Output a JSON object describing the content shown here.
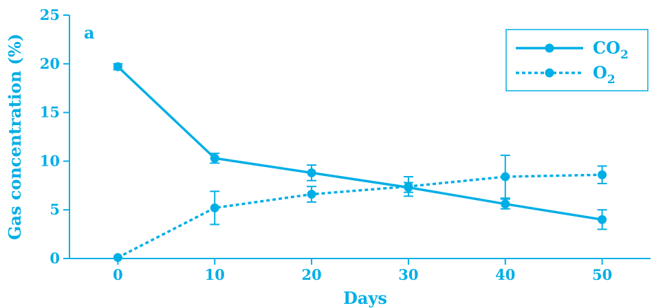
{
  "chart_data": {
    "type": "line",
    "panel_label": "a",
    "xlabel": "Days",
    "ylabel": "Gas concentration (%)",
    "x": [
      0,
      10,
      20,
      30,
      40,
      50
    ],
    "xlim": [
      -5,
      55
    ],
    "ylim": [
      0,
      25
    ],
    "xticks": [
      0,
      10,
      20,
      30,
      40,
      50
    ],
    "yticks": [
      0,
      5,
      10,
      15,
      20,
      25
    ],
    "grid": false,
    "legend_position": "top-right",
    "color": "#00aee6",
    "series": [
      {
        "name": "CO2",
        "label_base": "CO",
        "label_sub": "2",
        "style": "solid",
        "values": [
          19.7,
          10.3,
          8.8,
          7.3,
          5.6,
          4.0
        ],
        "errors": [
          0.3,
          0.5,
          0.8,
          0.5,
          0.5,
          1.0
        ]
      },
      {
        "name": "O2",
        "label_base": "O",
        "label_sub": "2",
        "style": "dotted",
        "values": [
          0.1,
          5.2,
          6.6,
          7.4,
          8.4,
          8.6
        ],
        "errors": [
          0.0,
          1.7,
          0.8,
          1.0,
          2.2,
          0.9
        ]
      }
    ]
  }
}
